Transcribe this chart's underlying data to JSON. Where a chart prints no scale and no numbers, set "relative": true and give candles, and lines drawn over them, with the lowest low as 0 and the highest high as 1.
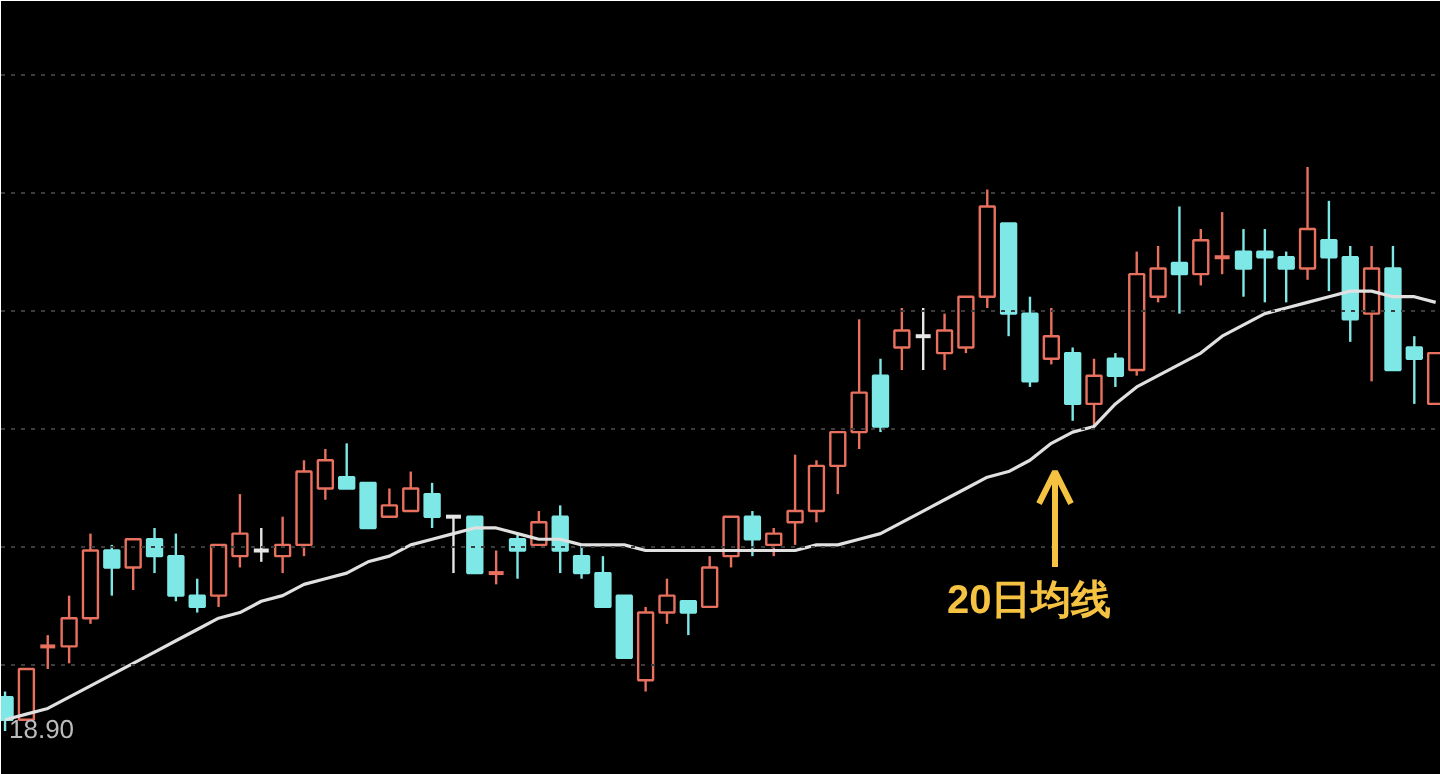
{
  "chart_data": {
    "type": "candlestick",
    "relative": true,
    "grid": "y",
    "categories": [
      null,
      null,
      null,
      null,
      null,
      null,
      null,
      null,
      null,
      null,
      null,
      null,
      null,
      null,
      null,
      null,
      null,
      null,
      null,
      null,
      null,
      null,
      null,
      null,
      null,
      null,
      null,
      null,
      null,
      null,
      null,
      null,
      null,
      null,
      null,
      null,
      null,
      null,
      null,
      null,
      null,
      null,
      null,
      null,
      null,
      null,
      null,
      null,
      null,
      null,
      null,
      null,
      null,
      null,
      null,
      null,
      null,
      null,
      null,
      null,
      null,
      null,
      null,
      null,
      null,
      null,
      null,
      null
    ],
    "ohlc": [
      [
        0.06,
        0.07,
        0,
        0.02
      ],
      [
        0.02,
        0.11,
        0.02,
        0.11
      ],
      [
        0.15,
        0.17,
        0.11,
        0.15
      ],
      [
        0.15,
        0.24,
        0.12,
        0.2
      ],
      [
        0.2,
        0.35,
        0.19,
        0.32
      ],
      [
        0.32,
        0.33,
        0.24,
        0.29
      ],
      [
        0.29,
        0.34,
        0.25,
        0.34
      ],
      [
        0.34,
        0.36,
        0.28,
        0.31
      ],
      [
        0.31,
        0.35,
        0.23,
        0.24
      ],
      [
        0.24,
        0.27,
        0.21,
        0.22
      ],
      [
        0.24,
        0.33,
        0.22,
        0.33
      ],
      [
        0.31,
        0.42,
        0.29,
        0.35
      ],
      [
        0.32,
        0.36,
        0.3,
        0.32
      ],
      [
        0.31,
        0.38,
        0.28,
        0.33
      ],
      [
        0.33,
        0.48,
        0.31,
        0.46
      ],
      [
        0.43,
        0.5,
        0.41,
        0.48
      ],
      [
        0.45,
        0.51,
        0.43,
        0.43
      ],
      [
        0.44,
        0.44,
        0.36,
        0.36
      ],
      [
        0.38,
        0.43,
        0.38,
        0.4
      ],
      [
        0.39,
        0.46,
        0.39,
        0.43
      ],
      [
        0.42,
        0.44,
        0.36,
        0.38
      ],
      [
        0.38,
        0.38,
        0.28,
        0.38
      ],
      [
        0.38,
        0.38,
        0.28,
        0.28
      ],
      [
        0.28,
        0.32,
        0.26,
        0.28
      ],
      [
        0.34,
        0.35,
        0.27,
        0.32
      ],
      [
        0.33,
        0.39,
        0.33,
        0.37
      ],
      [
        0.38,
        0.4,
        0.28,
        0.32
      ],
      [
        0.31,
        0.33,
        0.27,
        0.28
      ],
      [
        0.28,
        0.31,
        0.22,
        0.22
      ],
      [
        0.24,
        0.24,
        0.13,
        0.13
      ],
      [
        0.09,
        0.22,
        0.07,
        0.21
      ],
      [
        0.21,
        0.27,
        0.19,
        0.24
      ],
      [
        0.23,
        0.23,
        0.17,
        0.21
      ],
      [
        0.22,
        0.31,
        0.22,
        0.29
      ],
      [
        0.31,
        0.38,
        0.29,
        0.38
      ],
      [
        0.38,
        0.39,
        0.31,
        0.34
      ],
      [
        0.33,
        0.36,
        0.31,
        0.35
      ],
      [
        0.37,
        0.49,
        0.33,
        0.39
      ],
      [
        0.39,
        0.48,
        0.37,
        0.47
      ],
      [
        0.47,
        0.53,
        0.42,
        0.53
      ],
      [
        0.53,
        0.73,
        0.5,
        0.6
      ],
      [
        0.63,
        0.66,
        0.53,
        0.54
      ],
      [
        0.68,
        0.75,
        0.64,
        0.71
      ],
      [
        0.7,
        0.75,
        0.64,
        0.7
      ],
      [
        0.67,
        0.74,
        0.64,
        0.71
      ],
      [
        0.68,
        0.77,
        0.67,
        0.77
      ],
      [
        0.77,
        0.96,
        0.75,
        0.93
      ],
      [
        0.9,
        0.9,
        0.7,
        0.74
      ],
      [
        0.74,
        0.77,
        0.61,
        0.62
      ],
      [
        0.66,
        0.75,
        0.65,
        0.7
      ],
      [
        0.67,
        0.68,
        0.55,
        0.58
      ],
      [
        0.58,
        0.66,
        0.54,
        0.63
      ],
      [
        0.66,
        0.67,
        0.61,
        0.63
      ],
      [
        0.64,
        0.85,
        0.63,
        0.81
      ],
      [
        0.77,
        0.86,
        0.76,
        0.82
      ],
      [
        0.83,
        0.93,
        0.74,
        0.81
      ],
      [
        0.81,
        0.89,
        0.79,
        0.87
      ],
      [
        0.84,
        0.92,
        0.81,
        0.84
      ],
      [
        0.85,
        0.89,
        0.77,
        0.82
      ],
      [
        0.85,
        0.89,
        0.76,
        0.84
      ],
      [
        0.84,
        0.85,
        0.76,
        0.82
      ],
      [
        0.82,
        1.0,
        0.8,
        0.89
      ],
      [
        0.87,
        0.94,
        0.78,
        0.84
      ],
      [
        0.84,
        0.86,
        0.69,
        0.73
      ],
      [
        0.74,
        0.86,
        0.62,
        0.82
      ],
      [
        0.82,
        0.86,
        0.64,
        0.64
      ],
      [
        0.68,
        0.7,
        0.58,
        0.66
      ],
      [
        0.58,
        0.67,
        0.58,
        0.67
      ]
    ],
    "colors": [
      "#7ee8e6",
      "#e8705f",
      "#e8705f",
      "#e8705f",
      "#e8705f",
      "#7ee8e6",
      "#e8705f",
      "#7ee8e6",
      "#7ee8e6",
      "#7ee8e6",
      "#e8705f",
      "#e8705f",
      "#e6e6e6",
      "#e8705f",
      "#e8705f",
      "#e8705f",
      "#7ee8e6",
      "#7ee8e6",
      "#e8705f",
      "#e8705f",
      "#7ee8e6",
      "#e6e6e6",
      "#7ee8e6",
      "#e8705f",
      "#7ee8e6",
      "#e8705f",
      "#7ee8e6",
      "#7ee8e6",
      "#7ee8e6",
      "#7ee8e6",
      "#e8705f",
      "#e8705f",
      "#7ee8e6",
      "#e8705f",
      "#e8705f",
      "#7ee8e6",
      "#e8705f",
      "#e8705f",
      "#e8705f",
      "#e8705f",
      "#e8705f",
      "#7ee8e6",
      "#e8705f",
      "#e6e6e6",
      "#e8705f",
      "#e8705f",
      "#e8705f",
      "#7ee8e6",
      "#7ee8e6",
      "#e8705f",
      "#7ee8e6",
      "#e8705f",
      "#7ee8e6",
      "#e8705f",
      "#e8705f",
      "#7ee8e6",
      "#e8705f",
      "#e8705f",
      "#7ee8e6",
      "#7ee8e6",
      "#7ee8e6",
      "#e8705f",
      "#7ee8e6",
      "#7ee8e6",
      "#e8705f",
      "#7ee8e6",
      "#7ee8e6",
      "#e8705f"
    ],
    "series": [
      {
        "type": "line",
        "color": "#e0e0e0",
        "values": [
          0.02,
          0.03,
          0.04,
          0.06,
          0.08,
          0.1,
          0.12,
          0.14,
          0.16,
          0.18,
          0.2,
          0.21,
          0.23,
          0.24,
          0.26,
          0.27,
          0.28,
          0.3,
          0.31,
          0.33,
          0.34,
          0.35,
          0.36,
          0.36,
          0.35,
          0.34,
          0.34,
          0.33,
          0.33,
          0.33,
          0.32,
          0.32,
          0.32,
          0.32,
          0.32,
          0.32,
          0.32,
          0.32,
          0.33,
          0.33,
          0.34,
          0.35,
          0.37,
          0.39,
          0.41,
          0.43,
          0.45,
          0.46,
          0.48,
          0.51,
          0.53,
          0.54,
          0.58,
          0.61,
          0.63,
          0.65,
          0.67,
          0.7,
          0.72,
          0.74,
          0.75,
          0.76,
          0.77,
          0.78,
          0.78,
          0.77,
          0.77,
          0.76
        ]
      }
    ],
    "annotations": [
      {
        "text": "20日均线",
        "y": 0.46
      },
      "18.90"
    ]
  }
}
